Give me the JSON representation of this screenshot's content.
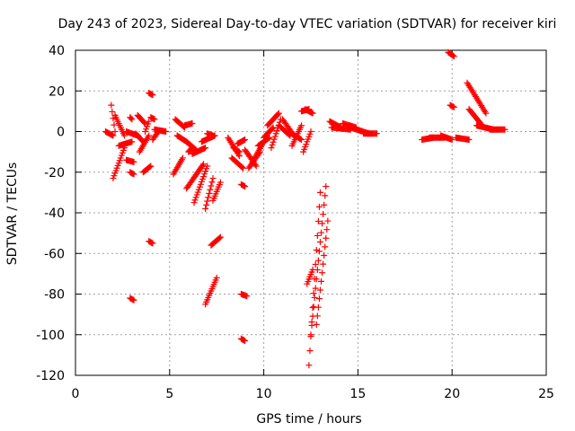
{
  "chart_data": {
    "type": "scatter",
    "title": "Day 243 of 2023, Sidereal Day-to-day VTEC variation (SDTVAR) for receiver kiri",
    "xlabel": "GPS time / hours",
    "ylabel": "SDTVAR / TECUs",
    "xlim": [
      0,
      25
    ],
    "ylim": [
      -120,
      40
    ],
    "xticks": [
      "0",
      "5",
      "10",
      "15",
      "20",
      "25"
    ],
    "yticks": [
      "40",
      "20",
      "0",
      "-20",
      "-40",
      "-60",
      "-80",
      "-100",
      "-120"
    ],
    "xtick_values": [
      0,
      5,
      10,
      15,
      20,
      25
    ],
    "ytick_values": [
      40,
      20,
      0,
      -20,
      -40,
      -60,
      -80,
      -100,
      -120
    ],
    "grid": true,
    "marker": "+",
    "color": "#ff0000",
    "arcs": [
      {
        "x0": 1.6,
        "x1": 2.0,
        "y0": 0,
        "y1": -2
      },
      {
        "x0": 1.9,
        "x1": 2.1,
        "y0": 13,
        "y1": 0
      },
      {
        "x0": 2.0,
        "x1": 2.6,
        "y0": -23,
        "y1": -8
      },
      {
        "x0": 2.1,
        "x1": 2.6,
        "y0": 8,
        "y1": -2
      },
      {
        "x0": 2.3,
        "x1": 3.0,
        "y0": -7,
        "y1": -5
      },
      {
        "x0": 2.7,
        "x1": 3.1,
        "y0": -14,
        "y1": -15
      },
      {
        "x0": 2.7,
        "x1": 3.3,
        "y0": 0,
        "y1": -2
      },
      {
        "x0": 2.9,
        "x1": 3.1,
        "y0": -20,
        "y1": -21
      },
      {
        "x0": 2.9,
        "x1": 3.1,
        "y0": -82,
        "y1": -83
      },
      {
        "x0": 2.9,
        "x1": 3.0,
        "y0": 7,
        "y1": 6
      },
      {
        "x0": 3.2,
        "x1": 3.6,
        "y0": -1,
        "y1": -5
      },
      {
        "x0": 3.3,
        "x1": 3.7,
        "y0": 8,
        "y1": 4
      },
      {
        "x0": 3.4,
        "x1": 3.9,
        "y0": -10,
        "y1": -2
      },
      {
        "x0": 3.6,
        "x1": 4.0,
        "y0": -20,
        "y1": -17
      },
      {
        "x0": 3.7,
        "x1": 3.9,
        "y0": 0,
        "y1": 5
      },
      {
        "x0": 3.9,
        "x1": 4.1,
        "y0": 19,
        "y1": 18
      },
      {
        "x0": 3.9,
        "x1": 4.1,
        "y0": -54,
        "y1": -55
      },
      {
        "x0": 4.0,
        "x1": 4.2,
        "y0": 7,
        "y1": 6
      },
      {
        "x0": 4.1,
        "x1": 4.4,
        "y0": -4,
        "y1": 0
      },
      {
        "x0": 4.2,
        "x1": 4.8,
        "y0": 1,
        "y1": 0
      },
      {
        "x0": 5.2,
        "x1": 5.7,
        "y0": -21,
        "y1": -13
      },
      {
        "x0": 5.3,
        "x1": 5.8,
        "y0": 6,
        "y1": 2
      },
      {
        "x0": 5.4,
        "x1": 5.9,
        "y0": -2,
        "y1": -5
      },
      {
        "x0": 5.8,
        "x1": 6.2,
        "y0": 3,
        "y1": 4
      },
      {
        "x0": 5.9,
        "x1": 6.4,
        "y0": -5,
        "y1": -9
      },
      {
        "x0": 5.9,
        "x1": 6.8,
        "y0": -28,
        "y1": -16
      },
      {
        "x0": 6.0,
        "x1": 6.2,
        "y0": -10,
        "y1": -8
      },
      {
        "x0": 6.2,
        "x1": 6.9,
        "y0": -11,
        "y1": -8
      },
      {
        "x0": 6.3,
        "x1": 7.0,
        "y0": -35,
        "y1": -17
      },
      {
        "x0": 6.7,
        "x1": 7.4,
        "y0": -5,
        "y1": -2
      },
      {
        "x0": 6.9,
        "x1": 7.5,
        "y0": -85,
        "y1": -72
      },
      {
        "x0": 6.9,
        "x1": 7.3,
        "y0": -38,
        "y1": -23
      },
      {
        "x0": 7.0,
        "x1": 7.3,
        "y0": -1,
        "y1": -2
      },
      {
        "x0": 7.2,
        "x1": 7.7,
        "y0": -56,
        "y1": -52
      },
      {
        "x0": 7.3,
        "x1": 7.7,
        "y0": -34,
        "y1": -25
      },
      {
        "x0": 8.1,
        "x1": 8.7,
        "y0": -3,
        "y1": -12
      },
      {
        "x0": 8.3,
        "x1": 8.9,
        "y0": -13,
        "y1": -18
      },
      {
        "x0": 8.4,
        "x1": 8.7,
        "y0": -8,
        "y1": -10
      },
      {
        "x0": 8.6,
        "x1": 9.0,
        "y0": -6,
        "y1": -4
      },
      {
        "x0": 8.8,
        "x1": 9.0,
        "y0": -26,
        "y1": -27
      },
      {
        "x0": 8.8,
        "x1": 9.1,
        "y0": -80,
        "y1": -81
      },
      {
        "x0": 8.8,
        "x1": 9.0,
        "y0": -102,
        "y1": -103
      },
      {
        "x0": 9.0,
        "x1": 9.6,
        "y0": -9,
        "y1": -17
      },
      {
        "x0": 9.2,
        "x1": 9.8,
        "y0": -18,
        "y1": -10
      },
      {
        "x0": 9.4,
        "x1": 10.0,
        "y0": -15,
        "y1": -5
      },
      {
        "x0": 9.7,
        "x1": 10.3,
        "y0": -7,
        "y1": -3
      },
      {
        "x0": 10.0,
        "x1": 10.5,
        "y0": -3,
        "y1": 2
      },
      {
        "x0": 10.2,
        "x1": 10.8,
        "y0": 3,
        "y1": 9
      },
      {
        "x0": 10.4,
        "x1": 10.9,
        "y0": -8,
        "y1": 6
      },
      {
        "x0": 10.8,
        "x1": 11.4,
        "y0": 3,
        "y1": -2
      },
      {
        "x0": 11.0,
        "x1": 11.6,
        "y0": 6,
        "y1": -2
      },
      {
        "x0": 11.3,
        "x1": 12.0,
        "y0": 0,
        "y1": -4
      },
      {
        "x0": 11.5,
        "x1": 12.0,
        "y0": -7,
        "y1": 3
      },
      {
        "x0": 12.0,
        "x1": 12.4,
        "y0": 10,
        "y1": 11
      },
      {
        "x0": 12.2,
        "x1": 12.6,
        "y0": 11,
        "y1": 9
      },
      {
        "x0": 12.1,
        "x1": 12.5,
        "y0": -10,
        "y1": 0
      },
      {
        "x0": 12.3,
        "x1": 12.6,
        "y0": -75,
        "y1": -68
      },
      {
        "x0": 12.4,
        "x1": 13.0,
        "y0": -115,
        "y1": -30
      },
      {
        "x0": 12.5,
        "x1": 13.3,
        "y0": -100,
        "y1": -27
      },
      {
        "x0": 12.8,
        "x1": 13.4,
        "y0": -95,
        "y1": -44
      },
      {
        "x0": 13.5,
        "x1": 14.1,
        "y0": 5,
        "y1": 2
      },
      {
        "x0": 13.6,
        "x1": 14.6,
        "y0": 2,
        "y1": 1
      },
      {
        "x0": 14.2,
        "x1": 14.9,
        "y0": 4,
        "y1": 2
      },
      {
        "x0": 14.6,
        "x1": 15.6,
        "y0": 2,
        "y1": -1
      },
      {
        "x0": 15.3,
        "x1": 16.0,
        "y0": -1,
        "y1": -1
      },
      {
        "x0": 18.4,
        "x1": 19.0,
        "y0": -4,
        "y1": -3
      },
      {
        "x0": 18.8,
        "x1": 19.6,
        "y0": -3,
        "y1": -3
      },
      {
        "x0": 19.4,
        "x1": 20.0,
        "y0": -2,
        "y1": -4
      },
      {
        "x0": 19.8,
        "x1": 20.1,
        "y0": 39,
        "y1": 37
      },
      {
        "x0": 19.9,
        "x1": 20.1,
        "y0": 13,
        "y1": 12
      },
      {
        "x0": 20.2,
        "x1": 20.9,
        "y0": -3,
        "y1": -4
      },
      {
        "x0": 20.8,
        "x1": 21.8,
        "y0": 24,
        "y1": 9
      },
      {
        "x0": 20.9,
        "x1": 21.6,
        "y0": 11,
        "y1": 3
      },
      {
        "x0": 21.3,
        "x1": 22.2,
        "y0": 3,
        "y1": 1
      },
      {
        "x0": 22.0,
        "x1": 22.8,
        "y0": 1,
        "y1": 1
      }
    ]
  }
}
